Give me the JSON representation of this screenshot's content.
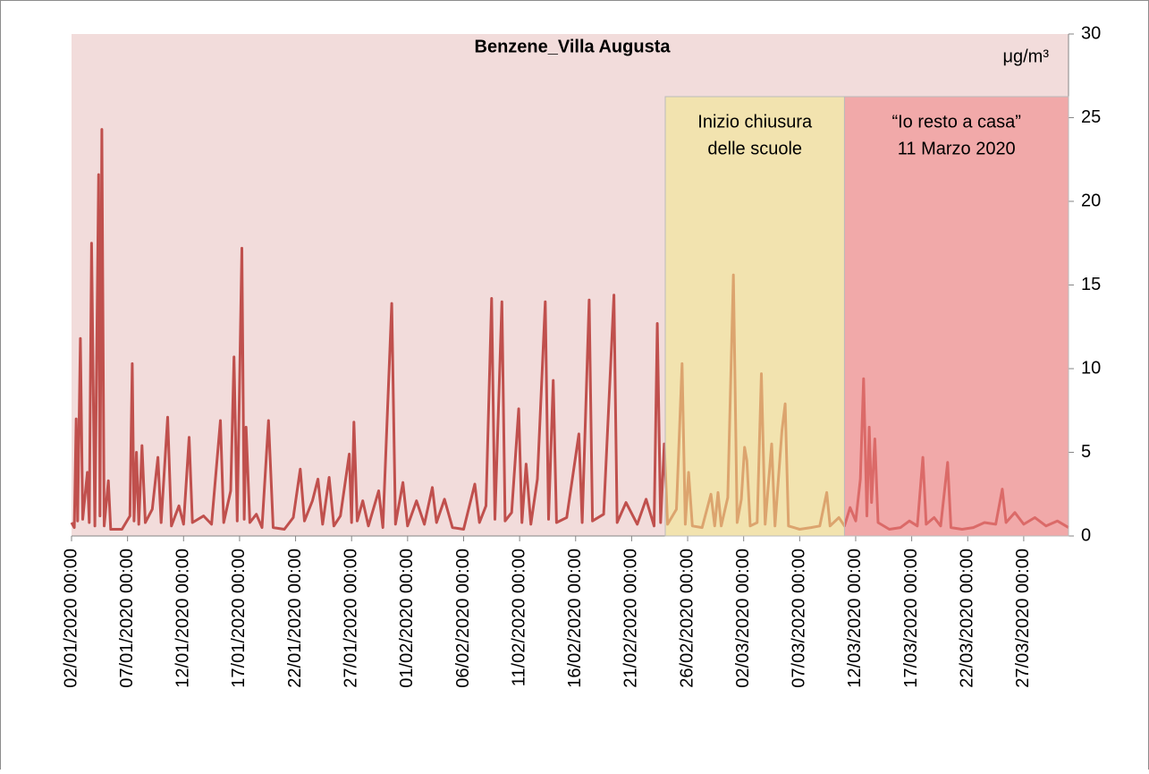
{
  "chart_data": {
    "type": "line",
    "title": "Benzene_Villa Augusta",
    "y_label": "μg/m³",
    "x": [
      "02/01/2020 00:00",
      "02/01/2020 06:00",
      "02/01/2020 10:00",
      "02/01/2020 13:00",
      "02/01/2020 19:00",
      "03/01/2020 00:00",
      "03/01/2020 10:00",
      "03/01/2020 14:00",
      "03/01/2020 19:00",
      "04/01/2020 02:00",
      "04/01/2020 10:00",
      "04/01/2020 13:00",
      "04/01/2020 17:00",
      "04/01/2020 22:00",
      "05/01/2020 07:00",
      "05/01/2020 12:00",
      "06/01/2020 12:00",
      "07/01/2020 05:00",
      "07/01/2020 10:00",
      "07/01/2020 14:00",
      "07/01/2020 19:00",
      "08/01/2020 00:00",
      "08/01/2020 07:00",
      "08/01/2020 14:00",
      "09/01/2020 05:00",
      "09/01/2020 17:00",
      "10/01/2020 00:00",
      "10/01/2020 14:00",
      "10/01/2020 22:00",
      "11/01/2020 14:00",
      "12/01/2020 00:00",
      "12/01/2020 12:00",
      "12/01/2020 19:00",
      "13/01/2020 19:00",
      "14/01/2020 12:00",
      "15/01/2020 07:00",
      "15/01/2020 14:00",
      "16/01/2020 05:00",
      "16/01/2020 12:00",
      "16/01/2020 19:00",
      "17/01/2020 05:00",
      "17/01/2020 10:00",
      "17/01/2020 14:00",
      "17/01/2020 22:00",
      "18/01/2020 12:00",
      "19/01/2020 00:00",
      "19/01/2020 14:00",
      "20/01/2020 00:00",
      "21/01/2020 00:00",
      "21/01/2020 19:00",
      "22/01/2020 10:00",
      "22/01/2020 19:00",
      "23/01/2020 12:00",
      "24/01/2020 00:00",
      "24/01/2020 10:00",
      "25/01/2020 00:00",
      "25/01/2020 10:00",
      "26/01/2020 00:00",
      "26/01/2020 19:00",
      "27/01/2020 00:00",
      "27/01/2020 05:00",
      "27/01/2020 12:00",
      "28/01/2020 00:00",
      "28/01/2020 12:00",
      "29/01/2020 10:00",
      "29/01/2020 19:00",
      "30/01/2020 14:00",
      "30/01/2020 22:00",
      "31/01/2020 14:00",
      "01/02/2020 00:00",
      "01/02/2020 19:00",
      "02/02/2020 12:00",
      "03/02/2020 05:00",
      "03/02/2020 14:00",
      "04/02/2020 07:00",
      "05/02/2020 00:00",
      "06/02/2020 00:00",
      "07/02/2020 00:00",
      "07/02/2020 10:00",
      "08/02/2020 00:00",
      "08/02/2020 12:00",
      "08/02/2020 19:00",
      "09/02/2020 10:00",
      "09/02/2020 17:00",
      "10/02/2020 07:00",
      "10/02/2020 22:00",
      "11/02/2020 05:00",
      "11/02/2020 14:00",
      "12/02/2020 00:00",
      "12/02/2020 14:00",
      "13/02/2020 07:00",
      "13/02/2020 14:00",
      "14/02/2020 00:00",
      "14/02/2020 07:00",
      "15/02/2020 05:00",
      "16/02/2020 07:00",
      "16/02/2020 14:00",
      "17/02/2020 05:00",
      "17/02/2020 12:00",
      "18/02/2020 12:00",
      "19/02/2020 10:00",
      "19/02/2020 17:00",
      "20/02/2020 12:00",
      "21/02/2020 12:00",
      "22/02/2020 07:00",
      "23/02/2020 00:00",
      "23/02/2020 07:00",
      "23/02/2020 14:00",
      "23/02/2020 22:00",
      "24/02/2020 05:00",
      "25/02/2020 00:00",
      "25/02/2020 12:00",
      "25/02/2020 19:00",
      "26/02/2020 02:00",
      "26/02/2020 10:00",
      "27/02/2020 07:00",
      "28/02/2020 02:00",
      "28/02/2020 10:00",
      "28/02/2020 17:00",
      "29/02/2020 00:00",
      "29/02/2020 14:00",
      "01/03/2020 02:00",
      "01/03/2020 10:00",
      "01/03/2020 19:00",
      "02/03/2020 02:00",
      "02/03/2020 07:00",
      "02/03/2020 14:00",
      "03/03/2020 05:00",
      "03/03/2020 14:00",
      "03/03/2020 22:00",
      "04/03/2020 12:00",
      "04/03/2020 19:00",
      "05/03/2020 10:00",
      "05/03/2020 17:00",
      "06/03/2020 00:00",
      "07/03/2020 00:00",
      "08/03/2020 00:00",
      "08/03/2020 19:00",
      "09/03/2020 10:00",
      "09/03/2020 17:00",
      "10/03/2020 12:00",
      "11/03/2020 00:00",
      "11/03/2020 12:00",
      "12/03/2020 00:00",
      "12/03/2020 10:00",
      "12/03/2020 17:00",
      "13/03/2020 00:00",
      "13/03/2020 05:00",
      "13/03/2020 10:00",
      "13/03/2020 17:00",
      "14/03/2020 00:00",
      "15/03/2020 00:00",
      "16/03/2020 00:00",
      "16/03/2020 19:00",
      "17/03/2020 12:00",
      "18/03/2020 00:00",
      "18/03/2020 07:00",
      "19/03/2020 00:00",
      "19/03/2020 14:00",
      "20/03/2020 05:00",
      "20/03/2020 12:00",
      "21/03/2020 12:00",
      "22/03/2020 12:00",
      "23/03/2020 12:00",
      "24/03/2020 12:00",
      "25/03/2020 02:00",
      "25/03/2020 10:00",
      "26/03/2020 05:00",
      "27/03/2020 00:00",
      "28/03/2020 00:00",
      "29/03/2020 00:00",
      "30/03/2020 00:00",
      "31/03/2020 00:00"
    ],
    "series": [
      {
        "color": "#c0504d",
        "values": [
          0.8,
          0.5,
          7.0,
          0.9,
          11.8,
          1.0,
          3.8,
          0.8,
          17.5,
          0.6,
          21.6,
          1.2,
          24.3,
          0.6,
          3.3,
          0.4,
          0.4,
          1.2,
          10.3,
          0.9,
          5.0,
          0.7,
          5.4,
          0.8,
          1.6,
          4.7,
          0.8,
          7.1,
          0.6,
          1.8,
          0.7,
          5.9,
          0.8,
          1.2,
          0.7,
          6.9,
          0.8,
          2.7,
          10.7,
          0.9,
          17.2,
          1.0,
          6.5,
          0.8,
          1.3,
          0.5,
          6.9,
          0.5,
          0.4,
          1.1,
          4.0,
          0.9,
          2.1,
          3.4,
          0.7,
          3.5,
          0.6,
          1.2,
          4.9,
          0.8,
          6.8,
          0.9,
          2.1,
          0.6,
          2.7,
          0.5,
          13.9,
          0.7,
          3.2,
          0.6,
          2.1,
          0.7,
          2.9,
          0.8,
          2.2,
          0.5,
          0.4,
          3.1,
          0.8,
          1.8,
          14.2,
          1.0,
          14.0,
          0.9,
          1.4,
          7.6,
          0.8,
          4.3,
          0.7,
          3.4,
          14.0,
          1.0,
          9.3,
          0.8,
          1.1,
          6.1,
          0.8,
          14.1,
          0.9,
          1.3,
          14.4,
          0.8,
          2.0,
          0.7,
          2.2,
          0.6,
          12.7,
          0.8,
          5.5,
          0.7,
          1.6,
          10.3,
          0.7,
          3.8,
          0.6,
          0.5,
          2.5,
          0.6,
          2.6,
          0.6,
          2.3,
          15.6,
          0.8,
          2.2,
          5.3,
          4.5,
          0.6,
          0.8,
          9.7,
          0.7,
          5.5,
          0.6,
          6.3,
          7.9,
          0.6,
          0.4,
          0.5,
          0.6,
          2.6,
          0.6,
          1.1,
          0.6,
          1.7,
          0.9,
          3.4,
          9.4,
          1.2,
          6.5,
          2.0,
          5.8,
          0.8,
          0.4,
          0.5,
          0.9,
          0.6,
          4.7,
          0.7,
          1.1,
          0.6,
          4.4,
          0.5,
          0.4,
          0.5,
          0.8,
          0.7,
          2.8,
          0.8,
          1.4,
          0.7,
          1.1,
          0.6,
          0.9,
          0.5
        ]
      }
    ],
    "xlim": [
      "02/01/2020 00:00",
      "31/03/2020 00:00"
    ],
    "xticks": [
      "02/01/2020 00:00",
      "07/01/2020 00:00",
      "12/01/2020 00:00",
      "17/01/2020 00:00",
      "22/01/2020 00:00",
      "27/01/2020 00:00",
      "01/02/2020 00:00",
      "06/02/2020 00:00",
      "11/02/2020 00:00",
      "16/02/2020 00:00",
      "21/02/2020 00:00",
      "26/02/2020 00:00",
      "02/03/2020 00:00",
      "07/03/2020 00:00",
      "12/03/2020 00:00",
      "17/03/2020 00:00",
      "22/03/2020 00:00",
      "27/03/2020 00:00"
    ],
    "ylim": [
      0,
      30
    ],
    "yticks": [
      0,
      5,
      10,
      15,
      20,
      25,
      30
    ],
    "regions": [
      {
        "labels": [
          "Inizio chiusura",
          "delle scuole"
        ],
        "start": "24/02/2020 00:00",
        "end": "11/03/2020 00:00",
        "color": "#f3e98a"
      },
      {
        "labels": [
          "“Io resto a casa”",
          "11 Marzo 2020"
        ],
        "start": "11/03/2020 00:00",
        "end": "31/03/2020 00:00",
        "color": "#f08080"
      }
    ]
  }
}
